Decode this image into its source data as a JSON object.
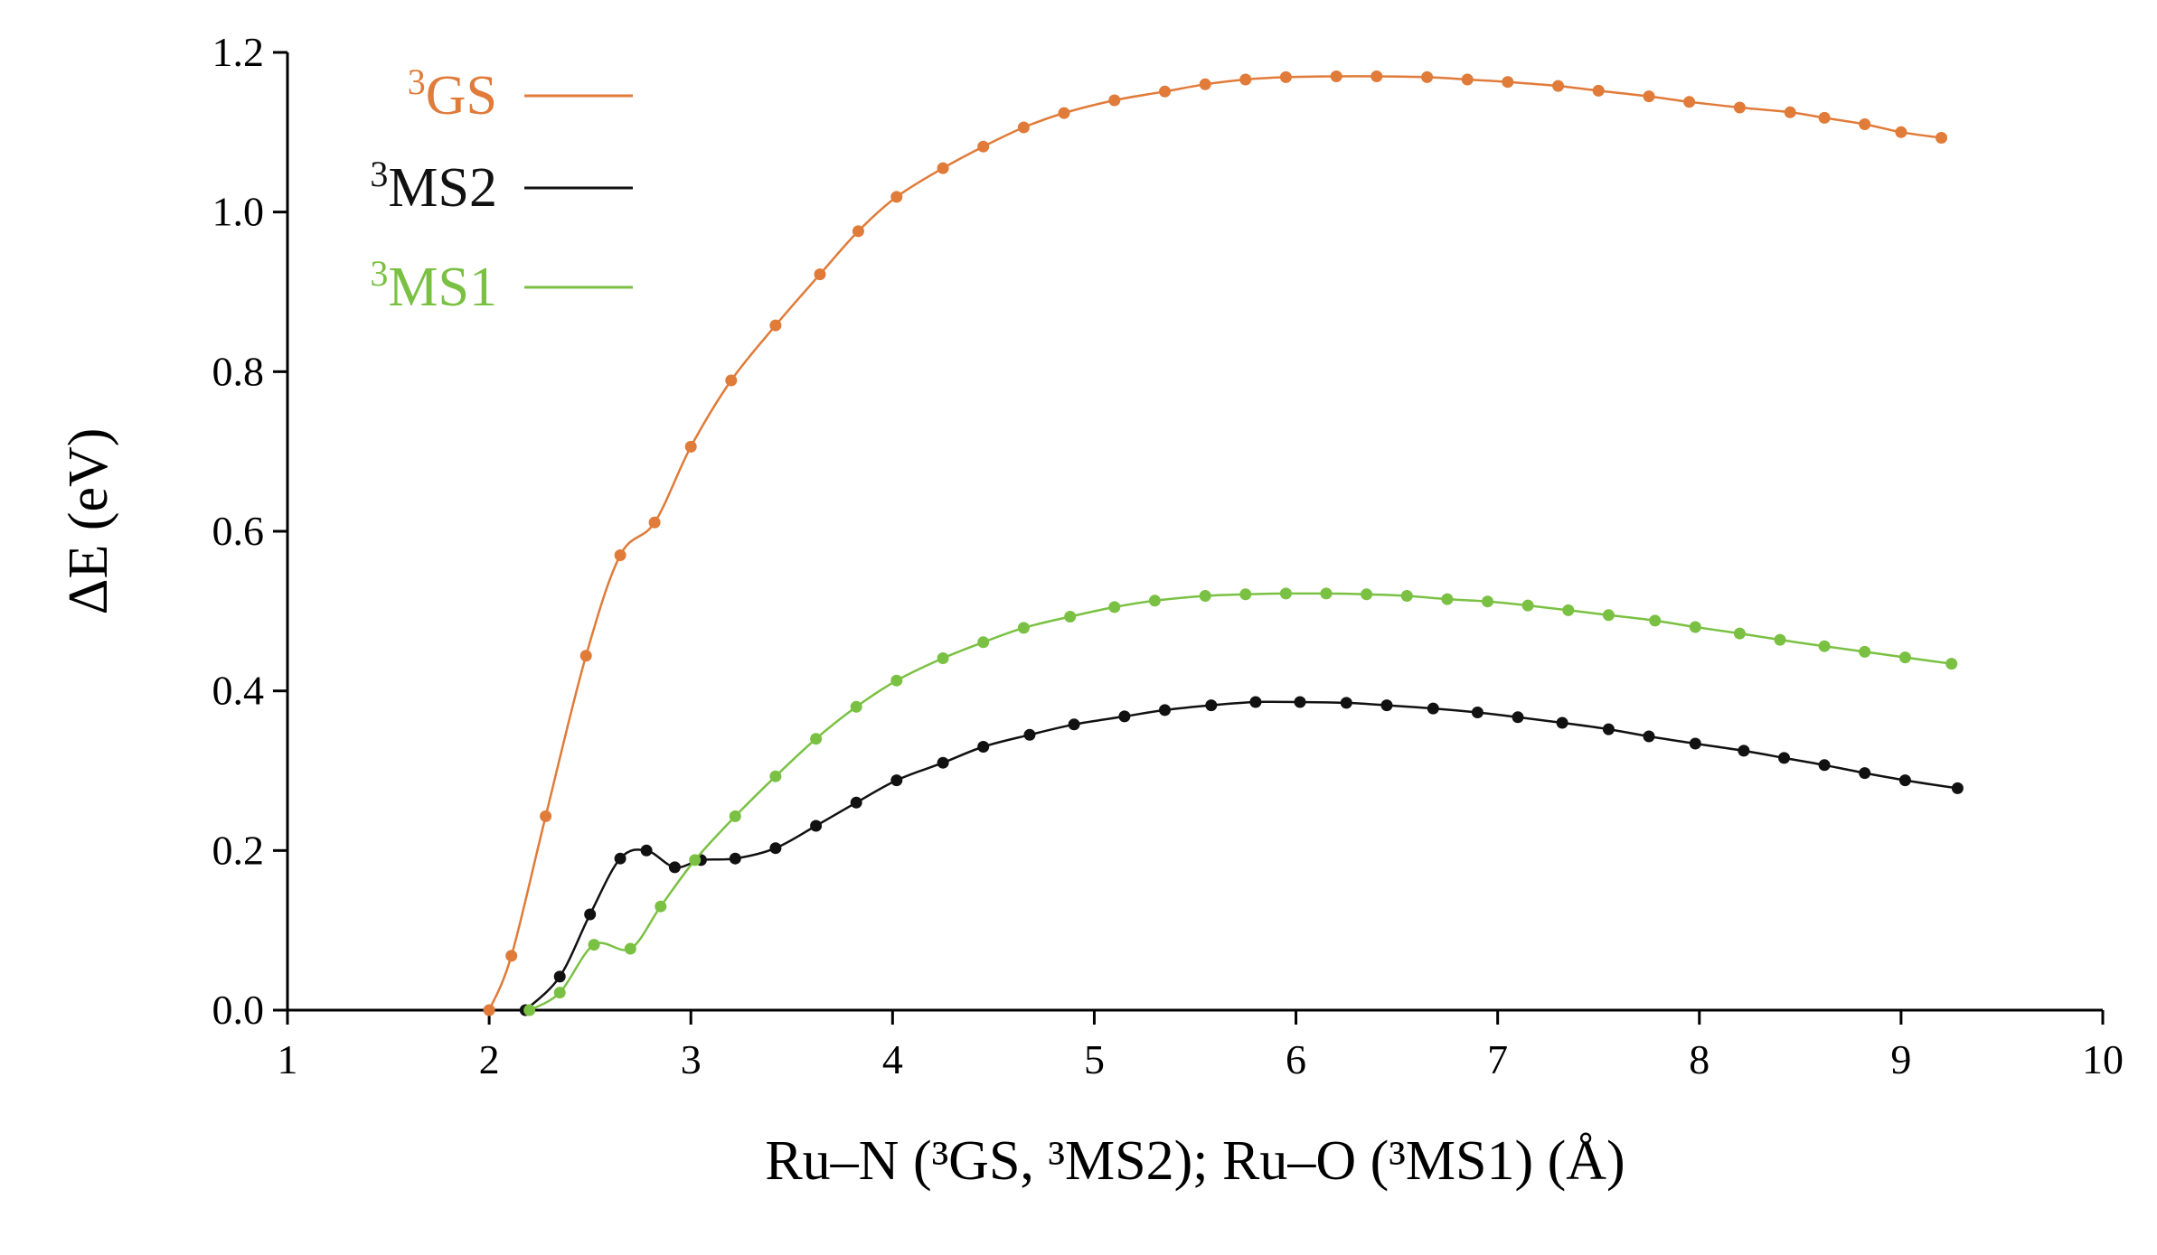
{
  "chart_data": {
    "type": "line",
    "title": "",
    "xlabel": "Ru–N (³GS, ³MS2); Ru–O (³MS1) (Å)",
    "ylabel": "ΔE (eV)",
    "xlim": [
      1,
      10
    ],
    "ylim": [
      0,
      1.2
    ],
    "x_ticks": [
      1,
      2,
      3,
      4,
      5,
      6,
      7,
      8,
      9,
      10
    ],
    "x_tick_labels": [
      "1",
      "2",
      "3",
      "4",
      "5",
      "6",
      "7",
      "8",
      "9",
      "10"
    ],
    "y_ticks": [
      0,
      0.2,
      0.4,
      0.6,
      0.8,
      1.0,
      1.2
    ],
    "y_tick_labels": [
      "0.0",
      "0.2",
      "0.4",
      "0.6",
      "0.8",
      "1.0",
      "1.2"
    ],
    "grid": false,
    "legend_position": "top-left",
    "series": [
      {
        "name": "³GS",
        "color": "#e07b39",
        "points": [
          [
            2.0,
            0.0
          ],
          [
            2.11,
            0.068
          ],
          [
            2.28,
            0.243
          ],
          [
            2.48,
            0.444
          ],
          [
            2.65,
            0.57
          ],
          [
            2.82,
            0.611
          ],
          [
            3.0,
            0.706
          ],
          [
            3.2,
            0.789
          ],
          [
            3.42,
            0.858
          ],
          [
            3.64,
            0.922
          ],
          [
            3.83,
            0.976
          ],
          [
            4.02,
            1.019
          ],
          [
            4.25,
            1.055
          ],
          [
            4.45,
            1.082
          ],
          [
            4.65,
            1.106
          ],
          [
            4.85,
            1.124
          ],
          [
            5.1,
            1.14
          ],
          [
            5.35,
            1.151
          ],
          [
            5.55,
            1.16
          ],
          [
            5.75,
            1.166
          ],
          [
            5.95,
            1.169
          ],
          [
            6.2,
            1.17
          ],
          [
            6.4,
            1.17
          ],
          [
            6.65,
            1.169
          ],
          [
            6.85,
            1.166
          ],
          [
            7.05,
            1.163
          ],
          [
            7.3,
            1.158
          ],
          [
            7.5,
            1.152
          ],
          [
            7.75,
            1.145
          ],
          [
            7.95,
            1.138
          ],
          [
            8.2,
            1.131
          ],
          [
            8.45,
            1.125
          ],
          [
            8.62,
            1.118
          ],
          [
            8.82,
            1.11
          ],
          [
            9.0,
            1.1
          ],
          [
            9.2,
            1.093
          ]
        ]
      },
      {
        "name": "³MS2",
        "color": "#111111",
        "points": [
          [
            2.18,
            0.0
          ],
          [
            2.35,
            0.042
          ],
          [
            2.5,
            0.12
          ],
          [
            2.65,
            0.19
          ],
          [
            2.78,
            0.2
          ],
          [
            2.92,
            0.179
          ],
          [
            3.05,
            0.188
          ],
          [
            3.22,
            0.19
          ],
          [
            3.42,
            0.203
          ],
          [
            3.62,
            0.231
          ],
          [
            3.82,
            0.26
          ],
          [
            4.02,
            0.288
          ],
          [
            4.25,
            0.31
          ],
          [
            4.45,
            0.33
          ],
          [
            4.68,
            0.345
          ],
          [
            4.9,
            0.358
          ],
          [
            5.15,
            0.368
          ],
          [
            5.35,
            0.376
          ],
          [
            5.58,
            0.382
          ],
          [
            5.8,
            0.386
          ],
          [
            6.02,
            0.386
          ],
          [
            6.25,
            0.385
          ],
          [
            6.45,
            0.382
          ],
          [
            6.68,
            0.378
          ],
          [
            6.9,
            0.373
          ],
          [
            7.1,
            0.367
          ],
          [
            7.32,
            0.36
          ],
          [
            7.55,
            0.352
          ],
          [
            7.75,
            0.343
          ],
          [
            7.98,
            0.334
          ],
          [
            8.22,
            0.325
          ],
          [
            8.42,
            0.316
          ],
          [
            8.62,
            0.307
          ],
          [
            8.82,
            0.297
          ],
          [
            9.02,
            0.288
          ],
          [
            9.28,
            0.278
          ]
        ]
      },
      {
        "name": "³MS1",
        "color": "#7ac143",
        "points": [
          [
            2.2,
            0.0
          ],
          [
            2.35,
            0.022
          ],
          [
            2.52,
            0.082
          ],
          [
            2.7,
            0.077
          ],
          [
            2.85,
            0.13
          ],
          [
            3.02,
            0.188
          ],
          [
            3.22,
            0.243
          ],
          [
            3.42,
            0.293
          ],
          [
            3.62,
            0.34
          ],
          [
            3.82,
            0.38
          ],
          [
            4.02,
            0.413
          ],
          [
            4.25,
            0.441
          ],
          [
            4.45,
            0.461
          ],
          [
            4.65,
            0.479
          ],
          [
            4.88,
            0.493
          ],
          [
            5.1,
            0.505
          ],
          [
            5.3,
            0.513
          ],
          [
            5.55,
            0.519
          ],
          [
            5.75,
            0.521
          ],
          [
            5.95,
            0.522
          ],
          [
            6.15,
            0.522
          ],
          [
            6.35,
            0.521
          ],
          [
            6.55,
            0.519
          ],
          [
            6.75,
            0.515
          ],
          [
            6.95,
            0.512
          ],
          [
            7.15,
            0.507
          ],
          [
            7.35,
            0.501
          ],
          [
            7.55,
            0.495
          ],
          [
            7.78,
            0.488
          ],
          [
            7.98,
            0.48
          ],
          [
            8.2,
            0.472
          ],
          [
            8.4,
            0.464
          ],
          [
            8.62,
            0.456
          ],
          [
            8.82,
            0.449
          ],
          [
            9.02,
            0.442
          ],
          [
            9.25,
            0.434
          ]
        ]
      }
    ]
  }
}
